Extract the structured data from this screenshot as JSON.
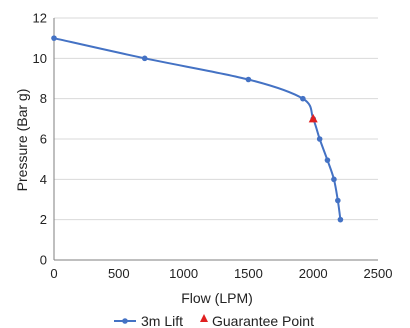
{
  "chart_data": {
    "type": "line",
    "xlabel": "Flow (LPM)",
    "ylabel": "Pressure (Bar g)",
    "xlim": [
      0,
      2500
    ],
    "ylim": [
      0,
      12
    ],
    "x_ticks": [
      0,
      500,
      1000,
      1500,
      2000,
      2500
    ],
    "y_ticks": [
      0,
      2,
      4,
      6,
      8,
      10,
      12
    ],
    "grid": "horizontal",
    "legend_position": "bottom",
    "series": [
      {
        "name": "3m Lift",
        "color": "#4472c4",
        "marker": "circle",
        "points": [
          {
            "x": 0,
            "y": 11.0
          },
          {
            "x": 700,
            "y": 10.0
          },
          {
            "x": 1500,
            "y": 8.95
          },
          {
            "x": 1920,
            "y": 8.0
          },
          {
            "x": 2000,
            "y": 7.0
          },
          {
            "x": 2050,
            "y": 6.0
          },
          {
            "x": 2110,
            "y": 4.95
          },
          {
            "x": 2160,
            "y": 4.0
          },
          {
            "x": 2190,
            "y": 2.95
          },
          {
            "x": 2210,
            "y": 2.0
          }
        ]
      },
      {
        "name": "Guarantee Point",
        "color": "#e02020",
        "marker": "triangle",
        "points": [
          {
            "x": 2000,
            "y": 7.0
          }
        ]
      }
    ]
  }
}
